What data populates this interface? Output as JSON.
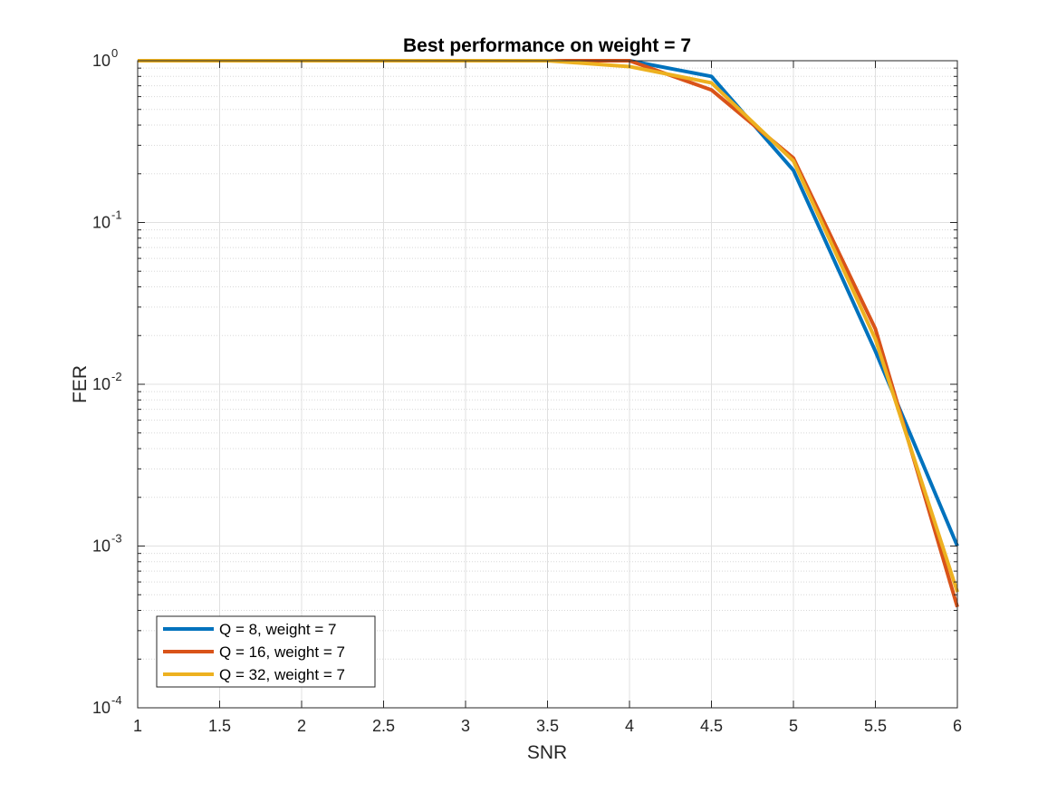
{
  "chart_data": {
    "type": "line",
    "title": "Best performance on weight = 7",
    "xlabel": "SNR",
    "ylabel": "FER",
    "xlim": [
      1,
      6
    ],
    "ylim": [
      0.0001,
      1
    ],
    "yscale": "log",
    "grid": true,
    "minor_grid": true,
    "legend_position": "bottom-left",
    "x_ticks": [
      "1",
      "1.5",
      "2",
      "2.5",
      "3",
      "3.5",
      "4",
      "4.5",
      "5",
      "5.5",
      "6"
    ],
    "y_ticks": [
      {
        "base": "10",
        "exp": "0"
      },
      {
        "base": "10",
        "exp": "-1"
      },
      {
        "base": "10",
        "exp": "-2"
      },
      {
        "base": "10",
        "exp": "-3"
      },
      {
        "base": "10",
        "exp": "-4"
      }
    ],
    "x": [
      1,
      1.5,
      2,
      2.5,
      3,
      3.5,
      4,
      4.5,
      5,
      5.5,
      6
    ],
    "series": [
      {
        "name": "Q = 8, weight = 7",
        "color": "#0072BD",
        "values": [
          1,
          1,
          1,
          1,
          1,
          1,
          1,
          0.8,
          0.21,
          0.016,
          0.001
        ]
      },
      {
        "name": "Q = 16, weight = 7",
        "color": "#D95319",
        "values": [
          1,
          1,
          1,
          1,
          1,
          1,
          1,
          0.66,
          0.25,
          0.022,
          0.00042
        ]
      },
      {
        "name": "Q = 32, weight = 7",
        "color": "#EDB120",
        "values": [
          1,
          1,
          1,
          1,
          1,
          1,
          0.92,
          0.73,
          0.24,
          0.019,
          0.00052
        ]
      }
    ]
  }
}
